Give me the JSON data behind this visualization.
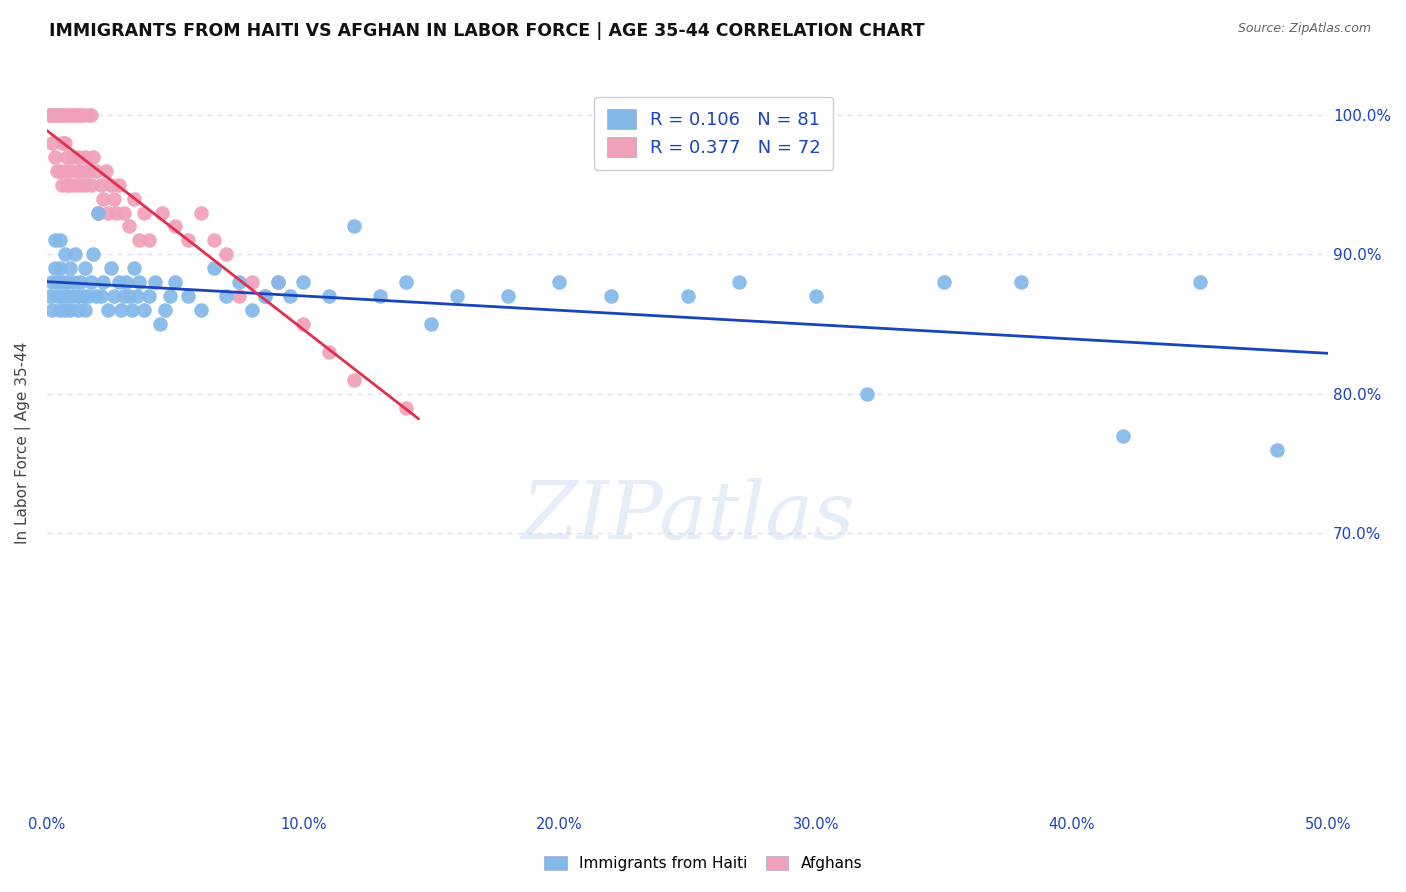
{
  "title": "IMMIGRANTS FROM HAITI VS AFGHAN IN LABOR FORCE | AGE 35-44 CORRELATION CHART",
  "source": "Source: ZipAtlas.com",
  "ylabel": "In Labor Force | Age 35-44",
  "x_min": 0.0,
  "x_max": 0.5,
  "y_min": 0.5,
  "y_max": 1.03,
  "x_ticks": [
    0.0,
    0.1,
    0.2,
    0.3,
    0.4,
    0.5
  ],
  "x_tick_labels": [
    "0.0%",
    "10.0%",
    "20.0%",
    "30.0%",
    "40.0%",
    "50.0%"
  ],
  "y_ticks": [
    0.7,
    0.8,
    0.9,
    1.0
  ],
  "y_tick_labels": [
    "70.0%",
    "80.0%",
    "90.0%",
    "100.0%"
  ],
  "haiti_color": "#82b8ea",
  "afghan_color": "#f0a0b8",
  "haiti_line_color": "#1a44bb",
  "afghan_line_color": "#e03050",
  "haiti_R": 0.106,
  "haiti_N": 81,
  "afghan_R": 0.377,
  "afghan_N": 72,
  "legend_text_color": "#1a44bb",
  "watermark": "ZIPatlas",
  "grid_color": "#d8ddf0",
  "background_color": "#ffffff",
  "haiti_scatter_x": [
    0.001,
    0.002,
    0.002,
    0.003,
    0.003,
    0.004,
    0.004,
    0.005,
    0.005,
    0.005,
    0.006,
    0.006,
    0.007,
    0.007,
    0.008,
    0.008,
    0.009,
    0.009,
    0.01,
    0.01,
    0.011,
    0.012,
    0.012,
    0.013,
    0.014,
    0.015,
    0.015,
    0.016,
    0.017,
    0.018,
    0.019,
    0.02,
    0.021,
    0.022,
    0.024,
    0.025,
    0.026,
    0.028,
    0.029,
    0.03,
    0.031,
    0.032,
    0.033,
    0.034,
    0.035,
    0.036,
    0.038,
    0.04,
    0.042,
    0.044,
    0.046,
    0.048,
    0.05,
    0.055,
    0.06,
    0.065,
    0.07,
    0.075,
    0.08,
    0.085,
    0.09,
    0.095,
    0.1,
    0.11,
    0.12,
    0.13,
    0.14,
    0.15,
    0.16,
    0.18,
    0.2,
    0.22,
    0.25,
    0.27,
    0.3,
    0.32,
    0.35,
    0.38,
    0.42,
    0.45,
    0.48
  ],
  "haiti_scatter_y": [
    0.87,
    0.88,
    0.86,
    0.89,
    0.91,
    0.88,
    0.87,
    0.86,
    0.89,
    0.91,
    0.87,
    0.88,
    0.86,
    0.9,
    0.87,
    0.88,
    0.86,
    0.89,
    0.87,
    0.88,
    0.9,
    0.87,
    0.86,
    0.88,
    0.87,
    0.86,
    0.89,
    0.87,
    0.88,
    0.9,
    0.87,
    0.93,
    0.87,
    0.88,
    0.86,
    0.89,
    0.87,
    0.88,
    0.86,
    0.87,
    0.88,
    0.87,
    0.86,
    0.89,
    0.87,
    0.88,
    0.86,
    0.87,
    0.88,
    0.85,
    0.86,
    0.87,
    0.88,
    0.87,
    0.86,
    0.89,
    0.87,
    0.88,
    0.86,
    0.87,
    0.88,
    0.87,
    0.88,
    0.87,
    0.92,
    0.87,
    0.88,
    0.85,
    0.87,
    0.87,
    0.88,
    0.87,
    0.87,
    0.88,
    0.87,
    0.8,
    0.88,
    0.88,
    0.77,
    0.88,
    0.76
  ],
  "afghan_scatter_x": [
    0.001,
    0.001,
    0.002,
    0.002,
    0.003,
    0.003,
    0.003,
    0.004,
    0.004,
    0.005,
    0.005,
    0.005,
    0.006,
    0.006,
    0.006,
    0.007,
    0.007,
    0.007,
    0.008,
    0.008,
    0.008,
    0.009,
    0.009,
    0.009,
    0.01,
    0.01,
    0.011,
    0.011,
    0.012,
    0.012,
    0.012,
    0.013,
    0.013,
    0.014,
    0.014,
    0.015,
    0.015,
    0.016,
    0.016,
    0.017,
    0.017,
    0.018,
    0.019,
    0.02,
    0.021,
    0.022,
    0.023,
    0.024,
    0.025,
    0.026,
    0.027,
    0.028,
    0.03,
    0.032,
    0.034,
    0.036,
    0.038,
    0.04,
    0.045,
    0.05,
    0.055,
    0.06,
    0.065,
    0.07,
    0.075,
    0.08,
    0.085,
    0.09,
    0.1,
    0.11,
    0.12,
    0.14
  ],
  "afghan_scatter_y": [
    1.0,
    1.0,
    1.0,
    0.98,
    1.0,
    1.0,
    0.97,
    1.0,
    0.96,
    1.0,
    1.0,
    0.96,
    1.0,
    0.95,
    0.98,
    1.0,
    0.96,
    0.98,
    1.0,
    0.97,
    0.95,
    1.0,
    0.96,
    0.95,
    1.0,
    0.97,
    1.0,
    0.95,
    1.0,
    0.97,
    0.96,
    1.0,
    0.95,
    1.0,
    0.96,
    0.95,
    0.97,
    1.0,
    0.96,
    1.0,
    0.95,
    0.97,
    0.96,
    0.93,
    0.95,
    0.94,
    0.96,
    0.93,
    0.95,
    0.94,
    0.93,
    0.95,
    0.93,
    0.92,
    0.94,
    0.91,
    0.93,
    0.91,
    0.93,
    0.92,
    0.91,
    0.93,
    0.91,
    0.9,
    0.87,
    0.88,
    0.87,
    0.88,
    0.85,
    0.83,
    0.81,
    0.79
  ]
}
